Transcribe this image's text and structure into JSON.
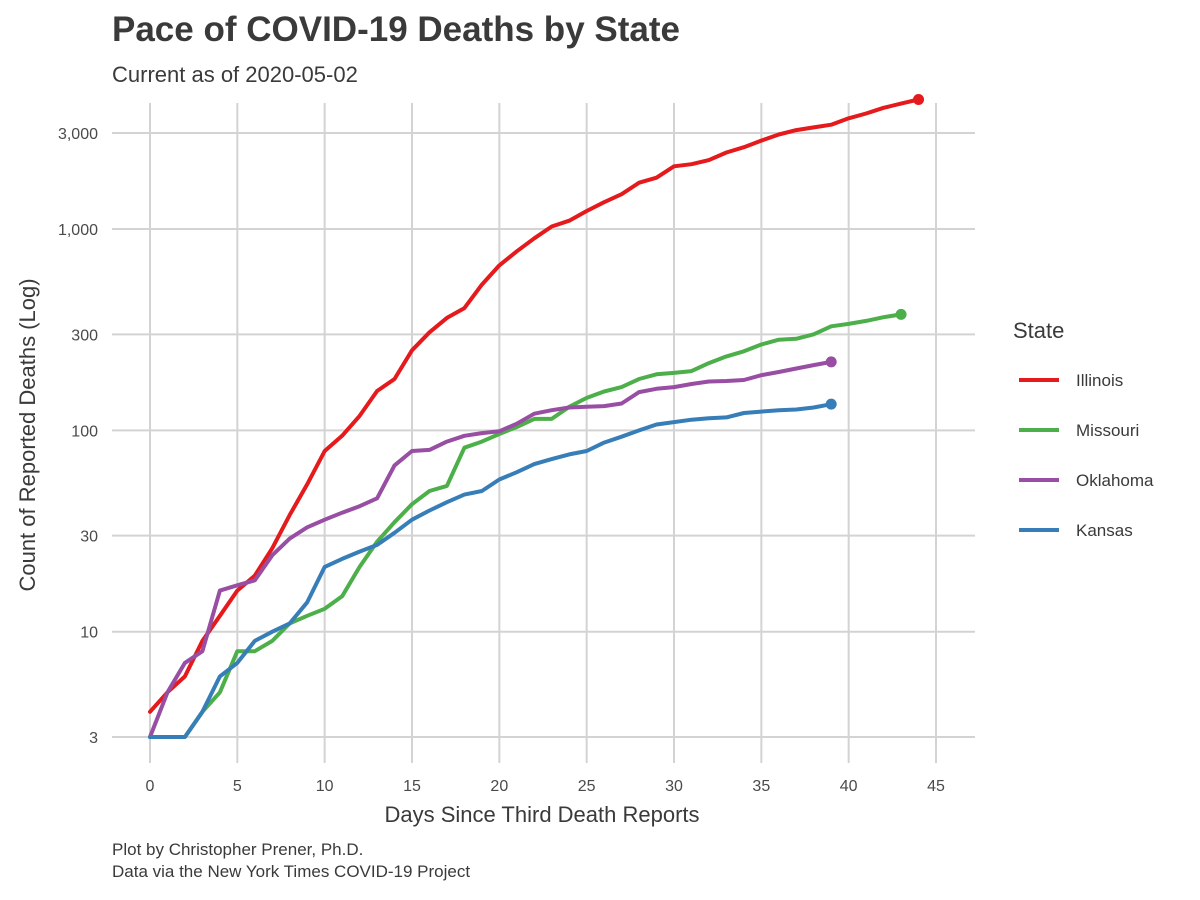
{
  "chart_data": {
    "type": "line",
    "title": "Pace of COVID-19 Deaths by State",
    "subtitle": "Current as of 2020-05-02",
    "xlabel": "Days Since Third Death Reports",
    "ylabel": "Count of Reported Deaths (Log)",
    "y_scale": "log",
    "xlim": [
      0,
      45
    ],
    "ylim": [
      2.6,
      3600
    ],
    "x_ticks": [
      0,
      5,
      10,
      15,
      20,
      25,
      30,
      35,
      40,
      45
    ],
    "y_ticks": [
      {
        "value": 3,
        "label": "3"
      },
      {
        "value": 10,
        "label": "10"
      },
      {
        "value": 30,
        "label": "30"
      },
      {
        "value": 100,
        "label": "100"
      },
      {
        "value": 300,
        "label": "300"
      },
      {
        "value": 1000,
        "label": "1,000"
      },
      {
        "value": 3000,
        "label": "3,000"
      }
    ],
    "grid": true,
    "legend": {
      "title": "State",
      "position": "right"
    },
    "series": [
      {
        "name": "Illinois",
        "color": "#e41a1c",
        "x": [
          0,
          1,
          2,
          3,
          4,
          5,
          6,
          7,
          8,
          9,
          10,
          11,
          12,
          13,
          14,
          15,
          16,
          17,
          18,
          19,
          20,
          21,
          22,
          23,
          24,
          25,
          26,
          27,
          28,
          29,
          30,
          31,
          32,
          33,
          34,
          35,
          36,
          37,
          38,
          39,
          40,
          41,
          42,
          43,
          44
        ],
        "y": [
          4,
          5,
          6,
          9,
          12,
          16,
          19,
          26,
          38,
          54,
          79,
          94,
          118,
          157,
          180,
          250,
          307,
          362,
          405,
          530,
          660,
          775,
          900,
          1030,
          1100,
          1230,
          1360,
          1490,
          1700,
          1800,
          2050,
          2100,
          2200,
          2400,
          2550,
          2750,
          2950,
          3100,
          3200,
          3300,
          3550,
          3750,
          4000,
          4200,
          4400
        ]
      },
      {
        "name": "Missouri",
        "color": "#4daf4a",
        "x": [
          0,
          1,
          2,
          3,
          4,
          5,
          6,
          7,
          8,
          9,
          10,
          11,
          12,
          13,
          14,
          15,
          16,
          17,
          18,
          19,
          20,
          21,
          22,
          23,
          24,
          25,
          26,
          27,
          28,
          29,
          30,
          31,
          32,
          33,
          34,
          35,
          36,
          37,
          38,
          39,
          40,
          41,
          42,
          43
        ],
        "y": [
          3,
          3,
          3,
          4,
          5,
          8,
          8,
          9,
          11,
          12,
          13,
          15,
          21,
          28,
          35,
          43,
          50,
          53,
          82,
          88,
          96,
          104,
          114,
          114,
          131,
          145,
          156,
          164,
          180,
          190,
          193,
          197,
          216,
          233,
          247,
          267,
          282,
          285,
          300,
          329,
          338,
          350,
          365,
          377
        ]
      },
      {
        "name": "Oklahoma",
        "color": "#984ea3",
        "x": [
          0,
          1,
          2,
          3,
          4,
          5,
          6,
          7,
          8,
          9,
          10,
          11,
          12,
          13,
          14,
          15,
          16,
          17,
          18,
          19,
          20,
          21,
          22,
          23,
          24,
          25,
          26,
          27,
          28,
          29,
          30,
          31,
          32,
          33,
          34,
          35,
          36,
          37,
          38,
          39
        ],
        "y": [
          3,
          5,
          7,
          8,
          16,
          17,
          18,
          24,
          29,
          33,
          36,
          39,
          42,
          46,
          67,
          79,
          80,
          88,
          94,
          97,
          99,
          108,
          121,
          126,
          130,
          131,
          132,
          136,
          155,
          161,
          164,
          170,
          175,
          176,
          178,
          188,
          195,
          203,
          211,
          219
        ]
      },
      {
        "name": "Kansas",
        "color": "#377eb8",
        "x": [
          0,
          1,
          2,
          3,
          4,
          5,
          6,
          7,
          8,
          9,
          10,
          11,
          12,
          13,
          14,
          15,
          16,
          17,
          18,
          19,
          20,
          21,
          22,
          23,
          24,
          25,
          26,
          27,
          28,
          29,
          30,
          31,
          32,
          33,
          34,
          35,
          36,
          37,
          38,
          39
        ],
        "y": [
          3,
          3,
          3,
          4,
          6,
          7,
          9,
          10,
          11,
          14,
          21,
          23,
          25,
          27,
          31,
          36,
          40,
          44,
          48,
          50,
          57,
          62,
          68,
          72,
          76,
          79,
          87,
          93,
          100,
          107,
          110,
          113,
          115,
          116,
          122,
          124,
          126,
          127,
          130,
          135
        ]
      }
    ]
  },
  "caption": {
    "line1": "Plot by Christopher Prener, Ph.D.",
    "line2": "Data via the New York Times COVID-19 Project"
  }
}
